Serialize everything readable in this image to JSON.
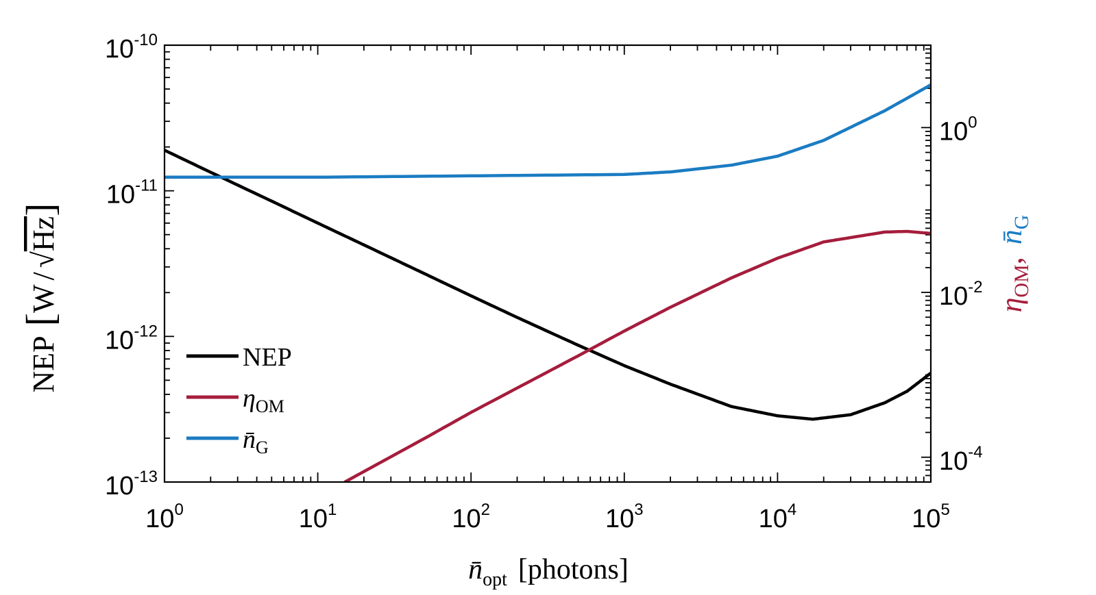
{
  "chart_data": {
    "type": "line",
    "x_scale": "log",
    "xlim": [
      1,
      100000
    ],
    "left_scale": "log",
    "left_ylim": [
      1e-13,
      1e-10
    ],
    "right_scale": "log",
    "right_ylim": [
      5e-05,
      10
    ],
    "x_ticks": [
      {
        "base": "10",
        "exp": "0",
        "value": 1
      },
      {
        "base": "10",
        "exp": "1",
        "value": 10
      },
      {
        "base": "10",
        "exp": "2",
        "value": 100
      },
      {
        "base": "10",
        "exp": "3",
        "value": 1000
      },
      {
        "base": "10",
        "exp": "4",
        "value": 10000
      },
      {
        "base": "10",
        "exp": "5",
        "value": 100000
      }
    ],
    "left_ticks": [
      {
        "base": "10",
        "exp": "-10",
        "value": 1e-10
      },
      {
        "base": "10",
        "exp": "-11",
        "value": 1e-11
      },
      {
        "base": "10",
        "exp": "-12",
        "value": 1e-12
      },
      {
        "base": "10",
        "exp": "-13",
        "value": 1e-13
      }
    ],
    "right_ticks": [
      {
        "base": "10",
        "exp": "0",
        "value": 1
      },
      {
        "base": "10",
        "exp": "-2",
        "value": 0.01
      },
      {
        "base": "10",
        "exp": "-4",
        "value": 0.0001
      }
    ],
    "xlabel": {
      "symbol": "n̄",
      "sub": "opt",
      "unit": "[photons]"
    },
    "ylabel_left": {
      "text": "NEP",
      "unit_open": "[",
      "unit_w": "W",
      "unit_slash": "/",
      "unit_sqrt": "√",
      "unit_hz": "Hz",
      "unit_close": "]"
    },
    "ylabel_right": {
      "eta": "η",
      "eta_sub": "OM",
      "comma": ",",
      "n": "n̄",
      "n_sub": "G"
    },
    "legend_position": "bottom-left",
    "series": [
      {
        "name": "NEP",
        "legend_main": "NEP",
        "legend_sub": "",
        "axis": "left",
        "color": "#000000",
        "x": [
          1,
          2,
          5,
          10,
          20,
          50,
          100,
          200,
          500,
          1000,
          2000,
          5000,
          10000,
          17000,
          30000,
          50000,
          70000,
          100000
        ],
        "y": [
          1.9e-11,
          1.34e-11,
          8.5e-12,
          6e-12,
          4.25e-12,
          2.69e-12,
          1.9e-12,
          1.35e-12,
          8.7e-13,
          6.3e-13,
          4.7e-13,
          3.3e-13,
          2.85e-13,
          2.7e-13,
          2.9e-13,
          3.5e-13,
          4.2e-13,
          5.6e-13
        ]
      },
      {
        "name": "ηOM",
        "legend_main": "η",
        "legend_sub": "OM",
        "axis": "right",
        "color": "#a51d3c",
        "x": [
          15,
          50,
          100,
          500,
          1000,
          2000,
          5000,
          10000,
          20000,
          50000,
          70000,
          100000
        ],
        "y": [
          5e-05,
          0.00017,
          0.00035,
          0.0017,
          0.0034,
          0.0066,
          0.015,
          0.026,
          0.041,
          0.054,
          0.055,
          0.052
        ]
      },
      {
        "name": "n̄G",
        "legend_main": "n̄",
        "legend_sub": "G",
        "axis": "right",
        "color": "#1b7cc2",
        "x": [
          1,
          10,
          100,
          1000,
          2000,
          5000,
          10000,
          20000,
          50000,
          100000
        ],
        "y": [
          0.25,
          0.25,
          0.26,
          0.27,
          0.29,
          0.35,
          0.45,
          0.7,
          1.6,
          3.3
        ]
      }
    ]
  }
}
